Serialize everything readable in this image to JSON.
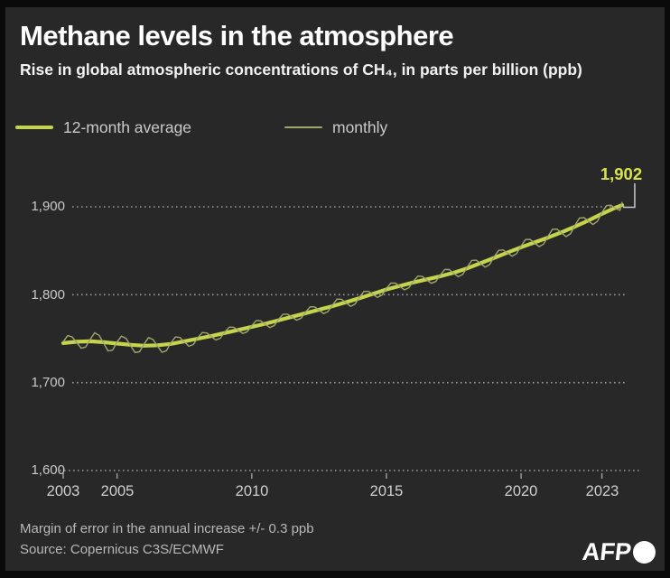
{
  "header": {
    "title": "Methane levels in the atmosphere",
    "subtitle": "Rise in global atmospheric concentrations of CH₄, in parts per billion (ppb)"
  },
  "legend": [
    {
      "label": "12-month average",
      "color": "#c6d44c",
      "thick": true
    },
    {
      "label": "monthly",
      "color": "#a0a66e",
      "thick": false
    }
  ],
  "footer": {
    "note": "Margin of error in the annual increase +/- 0.3 ppb",
    "source": "Source: Copernicus C3S/ECMWF",
    "logo": "AFP"
  },
  "colors": {
    "panel_background": "#282828",
    "frame": "#0a0a0a",
    "gridline": "#999999",
    "axis_text": "#c9c9c9",
    "average_line": "#c6d44c",
    "monthly_line": "#a0a66e",
    "annotation": "#d8e14e",
    "bracket": "#c9c9c9"
  },
  "chart_data": {
    "type": "line",
    "title": "Methane levels in the atmosphere",
    "xlabel": "",
    "ylabel": "parts per billion (ppb)",
    "xlim": [
      2003,
      2023.9
    ],
    "ylim": [
      1600,
      1930
    ],
    "grid": "horizontal dotted",
    "legend_position": "top",
    "x_ticks": [
      {
        "t": 2003,
        "label": "2003"
      },
      {
        "t": 2005,
        "label": "2005"
      },
      {
        "t": 2010,
        "label": "2010"
      },
      {
        "t": 2015,
        "label": "2015"
      },
      {
        "t": 2020,
        "label": "2020"
      },
      {
        "t": 2023,
        "label": "2023"
      }
    ],
    "y_ticks": [
      {
        "v": 1900,
        "label": "1,900"
      },
      {
        "v": 1800,
        "label": "1,800"
      },
      {
        "v": 1700,
        "label": "1,700"
      },
      {
        "v": 1600,
        "label": "1,600"
      }
    ],
    "annotation": {
      "label": "1,902",
      "t": 2023.75,
      "v": 1902
    },
    "series": [
      {
        "name": "12-month average",
        "color": "#c6d44c",
        "width": 4.2,
        "points": [
          [
            2003.0,
            1745
          ],
          [
            2003.5,
            1746.5
          ],
          [
            2004.0,
            1747
          ],
          [
            2004.5,
            1746
          ],
          [
            2005.0,
            1744.5
          ],
          [
            2005.5,
            1743
          ],
          [
            2006.0,
            1742
          ],
          [
            2006.5,
            1742.5
          ],
          [
            2007.0,
            1744
          ],
          [
            2007.5,
            1747
          ],
          [
            2008.0,
            1750
          ],
          [
            2008.5,
            1753
          ],
          [
            2009.0,
            1756.5
          ],
          [
            2009.5,
            1760
          ],
          [
            2010.0,
            1763.5
          ],
          [
            2010.5,
            1767
          ],
          [
            2011.0,
            1771
          ],
          [
            2011.5,
            1775
          ],
          [
            2012.0,
            1779
          ],
          [
            2012.5,
            1783
          ],
          [
            2013.0,
            1787
          ],
          [
            2013.5,
            1791.5
          ],
          [
            2014.0,
            1796
          ],
          [
            2014.5,
            1801
          ],
          [
            2015.0,
            1806
          ],
          [
            2015.5,
            1810
          ],
          [
            2016.0,
            1814
          ],
          [
            2016.5,
            1817.5
          ],
          [
            2017.0,
            1821
          ],
          [
            2017.5,
            1825
          ],
          [
            2018.0,
            1830
          ],
          [
            2018.5,
            1836
          ],
          [
            2019.0,
            1842
          ],
          [
            2019.5,
            1848
          ],
          [
            2020.0,
            1854
          ],
          [
            2020.5,
            1859.5
          ],
          [
            2021.0,
            1865
          ],
          [
            2021.5,
            1871
          ],
          [
            2022.0,
            1877.5
          ],
          [
            2022.5,
            1884.5
          ],
          [
            2023.0,
            1892
          ],
          [
            2023.5,
            1899
          ],
          [
            2023.75,
            1902
          ]
        ]
      },
      {
        "name": "monthly",
        "color": "#a0a66e",
        "width": 1.4,
        "points": [
          [
            2003.0,
            1746.6
          ],
          [
            2003.167,
            1753.5
          ],
          [
            2003.333,
            1752
          ],
          [
            2003.5,
            1745.7
          ],
          [
            2003.667,
            1739.1
          ],
          [
            2003.833,
            1740.4
          ],
          [
            2004.0,
            1749
          ],
          [
            2004.167,
            1756.7
          ],
          [
            2004.333,
            1753.8
          ],
          [
            2004.5,
            1745
          ],
          [
            2004.667,
            1736
          ],
          [
            2004.833,
            1737
          ],
          [
            2005.0,
            1746.3
          ],
          [
            2005.167,
            1753
          ],
          [
            2005.333,
            1750.3
          ],
          [
            2005.5,
            1742.1
          ],
          [
            2005.667,
            1734.2
          ],
          [
            2005.833,
            1735.1
          ],
          [
            2006.0,
            1743.8
          ],
          [
            2006.167,
            1751.2
          ],
          [
            2006.333,
            1749.1
          ],
          [
            2006.5,
            1741.6
          ],
          [
            2006.667,
            1734.5
          ],
          [
            2006.833,
            1736.3
          ],
          [
            2007.0,
            1745.4
          ],
          [
            2007.167,
            1752
          ],
          [
            2007.333,
            1751.3
          ],
          [
            2007.5,
            1746.3
          ],
          [
            2007.667,
            1741.4
          ],
          [
            2007.833,
            1743.4
          ],
          [
            2008.0,
            1751.2
          ],
          [
            2008.167,
            1757
          ],
          [
            2008.333,
            1756.5
          ],
          [
            2008.5,
            1752.4
          ],
          [
            2008.667,
            1748.5
          ],
          [
            2008.833,
            1750.5
          ],
          [
            2009.0,
            1757.6
          ],
          [
            2009.167,
            1763.2
          ],
          [
            2009.333,
            1762.9
          ],
          [
            2009.5,
            1759.5
          ],
          [
            2009.667,
            1756
          ],
          [
            2009.833,
            1757.9
          ],
          [
            2010.0,
            1764.7
          ],
          [
            2010.167,
            1770.7
          ],
          [
            2010.333,
            1770.3
          ],
          [
            2010.5,
            1766.4
          ],
          [
            2010.667,
            1762.6
          ],
          [
            2010.833,
            1764.9
          ],
          [
            2011.0,
            1772.1
          ],
          [
            2011.167,
            1777.8
          ],
          [
            2011.333,
            1777.8
          ],
          [
            2011.5,
            1774.5
          ],
          [
            2011.667,
            1771.1
          ],
          [
            2011.833,
            1773.3
          ],
          [
            2012.0,
            1780.2
          ],
          [
            2012.167,
            1786.3
          ],
          [
            2012.333,
            1786.2
          ],
          [
            2012.5,
            1782.4
          ],
          [
            2012.667,
            1778.6
          ],
          [
            2012.833,
            1780.9
          ],
          [
            2013.0,
            1788.3
          ],
          [
            2013.167,
            1795
          ],
          [
            2013.333,
            1794.9
          ],
          [
            2013.5,
            1790.9
          ],
          [
            2013.667,
            1786.8
          ],
          [
            2013.833,
            1789.3
          ],
          [
            2014.0,
            1797.2
          ],
          [
            2014.167,
            1803.7
          ],
          [
            2014.333,
            1803.8
          ],
          [
            2014.5,
            1800.4
          ],
          [
            2014.667,
            1797
          ],
          [
            2014.833,
            1799.5
          ],
          [
            2015.0,
            1807.2
          ],
          [
            2015.167,
            1813.3
          ],
          [
            2015.333,
            1813.2
          ],
          [
            2015.5,
            1809.4
          ],
          [
            2015.667,
            1805.6
          ],
          [
            2015.833,
            1807.9
          ],
          [
            2016.0,
            1815.2
          ],
          [
            2016.167,
            1821.2
          ],
          [
            2016.333,
            1820.8
          ],
          [
            2016.5,
            1816.9
          ],
          [
            2016.667,
            1813
          ],
          [
            2016.833,
            1815
          ],
          [
            2017.0,
            1822.3
          ],
          [
            2017.167,
            1828.8
          ],
          [
            2017.333,
            1828.6
          ],
          [
            2017.5,
            1824.4
          ],
          [
            2017.667,
            1820.5
          ],
          [
            2017.833,
            1823.1
          ],
          [
            2018.0,
            1831.4
          ],
          [
            2018.167,
            1839
          ],
          [
            2018.333,
            1839.3
          ],
          [
            2018.5,
            1835.3
          ],
          [
            2018.667,
            1831.4
          ],
          [
            2018.833,
            1834.4
          ],
          [
            2019.0,
            1843.3
          ],
          [
            2019.167,
            1850.5
          ],
          [
            2019.333,
            1850.9
          ],
          [
            2019.5,
            1847.4
          ],
          [
            2019.667,
            1843.8
          ],
          [
            2019.833,
            1846.8
          ],
          [
            2020.0,
            1855.4
          ],
          [
            2020.167,
            1862.8
          ],
          [
            2020.333,
            1862.9
          ],
          [
            2020.5,
            1858.8
          ],
          [
            2020.667,
            1854.7
          ],
          [
            2020.833,
            1857.6
          ],
          [
            2021.0,
            1866.5
          ],
          [
            2021.167,
            1874.5
          ],
          [
            2021.333,
            1874.6
          ],
          [
            2021.5,
            1870.3
          ],
          [
            2021.667,
            1866.1
          ],
          [
            2021.833,
            1869.3
          ],
          [
            2022.0,
            1879
          ],
          [
            2022.167,
            1887.3
          ],
          [
            2022.333,
            1887.8
          ],
          [
            2022.5,
            1883.8
          ],
          [
            2022.667,
            1879.9
          ],
          [
            2022.833,
            1883.5
          ],
          [
            2023.0,
            1893.4
          ],
          [
            2023.167,
            1901.3
          ],
          [
            2023.333,
            1901.9
          ],
          [
            2023.5,
            1898.3
          ],
          [
            2023.667,
            1896
          ],
          [
            2023.75,
            1905
          ]
        ]
      }
    ]
  }
}
